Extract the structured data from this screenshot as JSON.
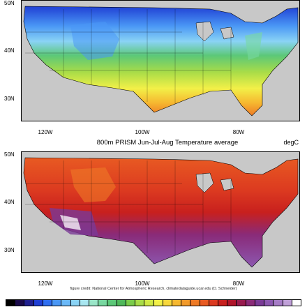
{
  "top_map": {
    "lat_labels": [
      "50N",
      "40N",
      "30N"
    ],
    "lon_labels": [
      "120W",
      "100W",
      "80W"
    ]
  },
  "bottom_map": {
    "title": "800m PRISM Jun-Jul-Aug Temperature average",
    "units": "degC",
    "lat_labels": [
      "50N",
      "40N",
      "30N"
    ],
    "lon_labels": [
      "120W",
      "100W",
      "80W"
    ]
  },
  "credit": "figure credit: National Center for Atmospheric Research, climatedataguide.ucar.edu (D. Schneider)",
  "colorbar": {
    "colors": [
      "#000000",
      "#1a0a4a",
      "#20208f",
      "#1f3fd4",
      "#2f6ef0",
      "#4a97f5",
      "#6ab8f7",
      "#8ad3f5",
      "#a8e6f0",
      "#9ae6c8",
      "#78d8a0",
      "#5cc878",
      "#4fb85a",
      "#7acc4a",
      "#a8dc48",
      "#d0e845",
      "#f2f048",
      "#f8d83c",
      "#f6b830",
      "#f29a2a",
      "#ee7a26",
      "#e85a22",
      "#dc3a20",
      "#c8201e",
      "#b0142a",
      "#981a4e",
      "#8a2a78",
      "#7a3a96",
      "#8c58b0",
      "#a67cc6",
      "#c0a0d8",
      "#ffffff"
    ]
  }
}
